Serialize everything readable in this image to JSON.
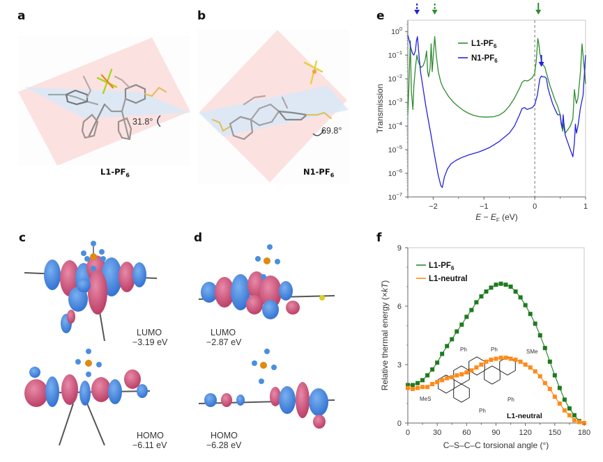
{
  "panels": {
    "a": {
      "letter": "a",
      "compound": "L1-PF",
      "compound_sub": "6",
      "angle": "31.8°"
    },
    "b": {
      "letter": "b",
      "compound": "N1-PF",
      "compound_sub": "6",
      "angle": "69.8°"
    },
    "c": {
      "letter": "c",
      "lumo_label": "LUMO",
      "lumo_energy": "−3.19 eV",
      "homo_label": "HOMO",
      "homo_energy": "−6.11 eV"
    },
    "d": {
      "letter": "d",
      "lumo_label": "LUMO",
      "lumo_energy": "−2.87 eV",
      "homo_label": "HOMO",
      "homo_energy": "−6.28 eV"
    },
    "e": {
      "letter": "e"
    },
    "f": {
      "letter": "f"
    }
  },
  "colors": {
    "green": "#2e8b2e",
    "blue": "#2222dd",
    "orange": "#ff8a1a",
    "plane_red": "#fbdada",
    "plane_blue": "#d6e8f8"
  },
  "chart_data": [
    {
      "id": "e",
      "type": "line",
      "title": "",
      "xlabel": "E − E_F (eV)",
      "ylabel": "Transmission",
      "xlim": [
        -2.5,
        1
      ],
      "ylim": [
        1e-07,
        3
      ],
      "yscale": "log",
      "xticks": [
        -2,
        -1,
        0,
        1
      ],
      "xtick_labels": [
        "−2",
        "−1",
        "0",
        "1"
      ],
      "yticks": [
        1e-07,
        1e-06,
        1e-05,
        0.0001,
        0.001,
        0.01,
        0.1,
        1
      ],
      "ytick_labels": [
        {
          "base": "10",
          "exp": "−7"
        },
        {
          "base": "10",
          "exp": "−6"
        },
        {
          "base": "10",
          "exp": "−5"
        },
        {
          "base": "10",
          "exp": "−4"
        },
        {
          "base": "10",
          "exp": "−3"
        },
        {
          "base": "10",
          "exp": "−2"
        },
        {
          "base": "10",
          "exp": "−1"
        },
        {
          "base": "10",
          "exp": "0"
        }
      ],
      "legend": {
        "placement": "top-center",
        "entries": [
          {
            "name": "L1-PF",
            "sub": "6"
          },
          {
            "name": "N1-PF",
            "sub": "6"
          }
        ]
      },
      "vline_x": 0,
      "series": [
        {
          "name": "L1-PF6",
          "color": "#2e8b2e",
          "x": [
            -2.5,
            -2.48,
            -2.45,
            -2.43,
            -2.4,
            -2.38,
            -2.35,
            -2.32,
            -2.3,
            -2.27,
            -2.24,
            -2.2,
            -2.16,
            -2.13,
            -2.11,
            -2.09,
            -2.06,
            -2.04,
            -2.02,
            -2.0,
            -1.97,
            -1.94,
            -1.9,
            -1.85,
            -1.8,
            -1.7,
            -1.6,
            -1.5,
            -1.4,
            -1.3,
            -1.2,
            -1.1,
            -1.0,
            -0.9,
            -0.8,
            -0.7,
            -0.6,
            -0.5,
            -0.4,
            -0.3,
            -0.25,
            -0.2,
            -0.15,
            -0.1,
            -0.05,
            0.0,
            0.03,
            0.06,
            0.08,
            0.1,
            0.13,
            0.16,
            0.2,
            0.22,
            0.25,
            0.3,
            0.35,
            0.4,
            0.45,
            0.5,
            0.52,
            0.55,
            0.57,
            0.6,
            0.65,
            0.7,
            0.75,
            0.78,
            0.8,
            0.82,
            0.85,
            0.9,
            0.93,
            0.95,
            0.98,
            1.0
          ],
          "y": [
            0.0003,
            0.004,
            0.4,
            0.003,
            0.0005,
            0.005,
            0.03,
            0.1,
            0.06,
            0.04,
            0.03,
            0.035,
            0.06,
            0.15,
            0.02,
            0.012,
            0.03,
            0.3,
            0.02,
            0.08,
            0.6,
            0.1,
            0.02,
            0.007,
            0.004,
            0.0018,
            0.001,
            0.00065,
            0.00045,
            0.00034,
            0.00028,
            0.00025,
            0.00024,
            0.00024,
            0.00025,
            0.00029,
            0.0004,
            0.0007,
            0.0015,
            0.004,
            0.007,
            0.0085,
            0.008,
            0.009,
            0.011,
            0.017,
            0.06,
            0.5,
            0.3,
            0.12,
            0.06,
            0.04,
            0.03,
            0.02,
            0.012,
            0.005,
            0.0025,
            0.0012,
            0.0007,
            0.0003,
            0.00015,
            6e-05,
            0.00015,
            5e-05,
            7e-05,
            0.0001,
            0.0002,
            0.0035,
            0.0015,
            0.0009,
            0.0015,
            0.02,
            0.3,
            0.1,
            0.02,
            0.006
          ]
        },
        {
          "name": "N1-PF6",
          "color": "#2222dd",
          "x": [
            -2.5,
            -2.47,
            -2.44,
            -2.41,
            -2.38,
            -2.35,
            -2.33,
            -2.31,
            -2.28,
            -2.25,
            -2.2,
            -2.15,
            -2.1,
            -2.05,
            -2.0,
            -1.95,
            -1.9,
            -1.85,
            -1.82,
            -1.78,
            -1.72,
            -1.65,
            -1.55,
            -1.45,
            -1.3,
            -1.1,
            -0.9,
            -0.7,
            -0.5,
            -0.4,
            -0.3,
            -0.25,
            -0.2,
            -0.15,
            -0.1,
            -0.05,
            0.0,
            0.05,
            0.1,
            0.13,
            0.16,
            0.2,
            0.23,
            0.26,
            0.3,
            0.35,
            0.4,
            0.45,
            0.5,
            0.52,
            0.54,
            0.56,
            0.58,
            0.6,
            0.65,
            0.7,
            0.75,
            0.78,
            0.8,
            0.82,
            0.85,
            0.9,
            0.95,
            0.98,
            1.0
          ],
          "y": [
            0.7,
            0.4,
            0.2,
            0.12,
            0.1,
            0.15,
            0.4,
            0.6,
            0.1,
            0.02,
            0.004,
            0.0008,
            0.0002,
            5e-05,
            1.2e-05,
            3e-06,
            8e-07,
            3e-07,
            2.5e-07,
            7e-07,
            1.5e-06,
            2.5e-06,
            3.5e-06,
            4.5e-06,
            6e-06,
            8e-06,
            1.2e-05,
            2.2e-05,
            5e-05,
            0.0001,
            0.0003,
            0.00055,
            0.0006,
            0.0005,
            0.00055,
            0.0006,
            0.0008,
            0.002,
            0.01,
            0.013,
            0.012,
            0.012,
            0.01,
            0.004,
            0.002,
            0.0009,
            0.0005,
            0.0003,
            0.0003,
            0.00012,
            8e-05,
            0.0003,
            8e-05,
            4e-05,
            2e-05,
            1e-05,
            5e-06,
            2e-05,
            0.00012,
            5e-05,
            0.0001,
            0.0006,
            0.002,
            0.02,
            0.1
          ]
        }
      ],
      "arrows": [
        {
          "x": -2.32,
          "color": "#2222dd",
          "style": "dashed"
        },
        {
          "x": -1.97,
          "color": "#2e8b2e",
          "style": "dashed"
        },
        {
          "x": 0.07,
          "color": "#2e8b2e",
          "style": "solid"
        },
        {
          "x": 0.13,
          "color": "#2222dd",
          "style": "solid"
        }
      ]
    },
    {
      "id": "f",
      "type": "line",
      "title": "",
      "xlabel": "C–S–C–C torsional angle (°)",
      "ylabel": "Relative thermal energy (×kT)",
      "ylabel_parts": {
        "pre": "Relative thermal energy (×",
        "ital": "kT",
        "post": ")"
      },
      "xlim": [
        0,
        180
      ],
      "ylim": [
        0,
        9
      ],
      "xticks": [
        0,
        30,
        60,
        90,
        120,
        150,
        180
      ],
      "yticks": [
        0,
        3,
        6,
        9
      ],
      "legend": {
        "placement": "top-left",
        "entries": [
          {
            "name": "L1-PF",
            "sub": "6"
          },
          {
            "name": "L1-neutral",
            "sub": ""
          }
        ]
      },
      "inset_label": "L1-neutral",
      "inset_substituents": [
        "Ph",
        "Ph",
        "Ph",
        "Ph",
        "SMe",
        "MeS"
      ],
      "x": [
        0,
        5,
        10,
        15,
        20,
        25,
        30,
        35,
        40,
        45,
        50,
        55,
        60,
        65,
        70,
        75,
        80,
        85,
        90,
        95,
        100,
        105,
        110,
        115,
        120,
        125,
        130,
        135,
        140,
        145,
        150,
        155,
        160,
        165,
        170,
        175,
        180
      ],
      "series": [
        {
          "name": "L1-PF6",
          "color": "#2e8b2e",
          "values": [
            1.95,
            1.95,
            2.05,
            2.2,
            2.45,
            2.75,
            3.1,
            3.55,
            3.95,
            4.3,
            4.7,
            5.05,
            5.45,
            5.8,
            6.2,
            6.5,
            6.75,
            6.95,
            7.1,
            7.15,
            7.1,
            7.0,
            6.75,
            6.45,
            6.05,
            5.6,
            5.1,
            4.5,
            3.85,
            3.15,
            2.45,
            1.8,
            1.2,
            0.75,
            0.4,
            0.1,
            0.0
          ]
        },
        {
          "name": "L1-neutral",
          "color": "#ff8a1a",
          "values": [
            1.8,
            1.75,
            1.8,
            1.85,
            1.85,
            2.0,
            2.1,
            2.2,
            2.3,
            2.35,
            2.45,
            2.5,
            2.6,
            2.7,
            2.85,
            3.0,
            3.15,
            3.25,
            3.3,
            3.35,
            3.35,
            3.3,
            3.25,
            3.15,
            3.0,
            2.85,
            2.65,
            2.4,
            2.05,
            1.75,
            1.35,
            1.0,
            0.65,
            0.4,
            0.15,
            0.05,
            0.0
          ]
        }
      ]
    }
  ]
}
